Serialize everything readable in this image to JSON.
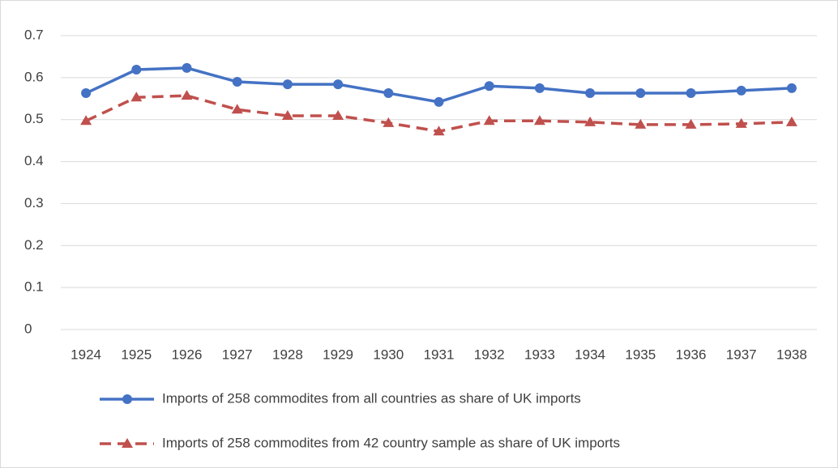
{
  "chart_data": {
    "type": "line",
    "categories": [
      "1924",
      "1925",
      "1926",
      "1927",
      "1928",
      "1929",
      "1930",
      "1931",
      "1932",
      "1933",
      "1934",
      "1935",
      "1936",
      "1937",
      "1938"
    ],
    "series": [
      {
        "name": "Imports of 258 commodites from all countries as share of UK imports",
        "color": "#4472c4",
        "marker": "circle",
        "dash": false,
        "values": [
          0.563,
          0.619,
          0.623,
          0.59,
          0.584,
          0.584,
          0.563,
          0.542,
          0.58,
          0.575,
          0.563,
          0.563,
          0.563,
          0.569,
          0.575
        ]
      },
      {
        "name": "Imports of 258 commodites from 42 country sample as share of UK imports",
        "color": "#c0504d",
        "marker": "triangle",
        "dash": true,
        "values": [
          0.497,
          0.553,
          0.557,
          0.524,
          0.509,
          0.509,
          0.492,
          0.472,
          0.497,
          0.497,
          0.494,
          0.488,
          0.488,
          0.49,
          0.494
        ]
      }
    ],
    "ylim": [
      0,
      0.7
    ],
    "yticks": [
      0,
      0.1,
      0.2,
      0.3,
      0.4,
      0.5,
      0.6,
      0.7
    ],
    "grid": true,
    "legend": "bottom"
  }
}
